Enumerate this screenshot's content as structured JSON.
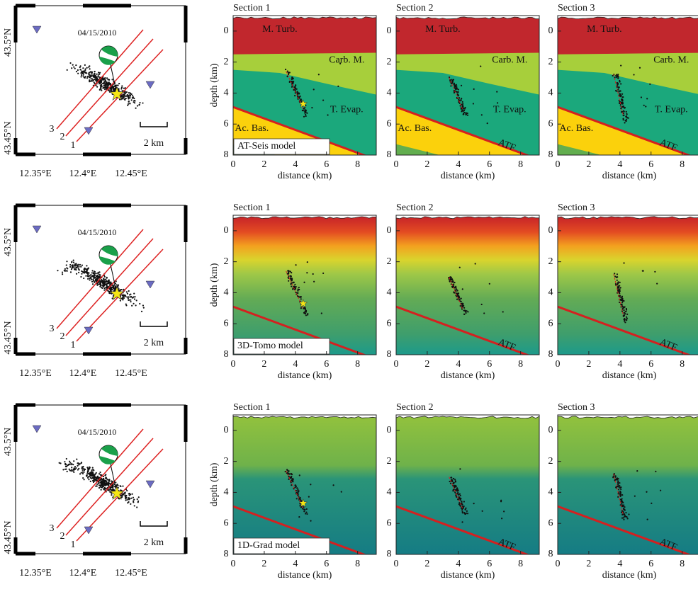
{
  "figure": {
    "axes": {
      "xlabel": "distance (km)",
      "ylabel": "depth (km)",
      "xlim": [
        0,
        9.2
      ],
      "ylim": [
        -1,
        8
      ],
      "xticks": [
        0,
        2,
        4,
        6,
        8
      ],
      "yticks": [
        0,
        2,
        4,
        6,
        8
      ]
    },
    "map": {
      "date": "04/15/2010",
      "lat_ticks": [
        "43.5°N",
        "43.45°N"
      ],
      "lon_ticks": [
        "12.35°E",
        "12.4°E",
        "12.45°E"
      ],
      "scale": "2 km",
      "profiles": [
        "1",
        "2",
        "3"
      ]
    },
    "rows": [
      {
        "model": "AT-Seis model",
        "sections": [
          {
            "title": "Section 1",
            "labels": {
              "m_turb": "M. Turb.",
              "carb": "Carb. M.",
              "evap": "T. Evap.",
              "bas": "Ac. Bas."
            }
          },
          {
            "title": "Section 2",
            "labels": {
              "m_turb": "M. Turb.",
              "carb": "Carb. M.",
              "evap": "T. Evap.",
              "bas": "Ac. Bas.",
              "atf": "ATF"
            }
          },
          {
            "title": "Section 3",
            "labels": {
              "m_turb": "M. Turb.",
              "carb": "Carb. M.",
              "evap": "T. Evap.",
              "bas": "Ac. Bas.",
              "atf": "ATF"
            }
          }
        ]
      },
      {
        "model": "3D-Tomo model",
        "sections": [
          {
            "title": "Section 1",
            "labels": {}
          },
          {
            "title": "Section 2",
            "labels": {
              "atf": "ATF"
            }
          },
          {
            "title": "Section 3",
            "labels": {
              "atf": "ATF"
            }
          }
        ]
      },
      {
        "model": "1D-Grad model",
        "sections": [
          {
            "title": "Section 1",
            "labels": {}
          },
          {
            "title": "Section 2",
            "labels": {
              "atf": "ATF"
            }
          },
          {
            "title": "Section 3",
            "labels": {
              "atf": "ATF"
            }
          }
        ]
      }
    ]
  }
}
